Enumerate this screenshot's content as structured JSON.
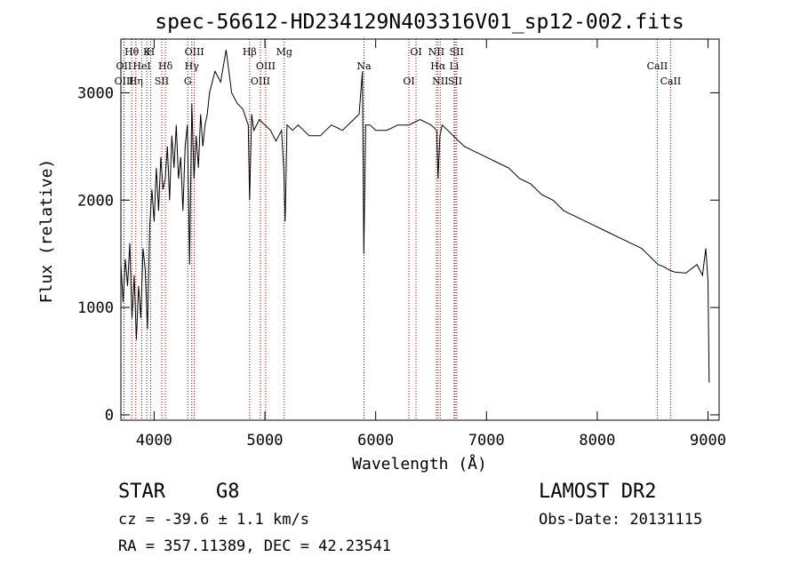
{
  "chart_data": {
    "type": "line",
    "title": "spec-56612-HD234129N403316V01_sp12-002.fits",
    "xlabel": "Wavelength (Å)",
    "ylabel": "Flux (relative)",
    "xlim": [
      3700,
      9100
    ],
    "ylim": [
      -50,
      3500
    ],
    "x_ticks": [
      4000,
      5000,
      6000,
      7000,
      8000,
      9000
    ],
    "y_ticks": [
      0,
      1000,
      2000,
      3000
    ],
    "x_tick_labels": [
      "4000",
      "5000",
      "6000",
      "7000",
      "8000",
      "9000"
    ],
    "y_tick_labels": [
      "0",
      "1000",
      "2000",
      "3000"
    ],
    "grid": false,
    "series": [
      {
        "x": [
          3700,
          3720,
          3740,
          3760,
          3780,
          3800,
          3820,
          3840,
          3860,
          3880,
          3900,
          3920,
          3940,
          3960,
          3980,
          4000,
          4020,
          4040,
          4060,
          4080,
          4100,
          4120,
          4140,
          4160,
          4180,
          4200,
          4220,
          4240,
          4260,
          4280,
          4300,
          4320,
          4340,
          4360,
          4380,
          4400,
          4420,
          4440,
          4460,
          4480,
          4500,
          4550,
          4600,
          4650,
          4700,
          4750,
          4800,
          4850,
          4862,
          4880,
          4900,
          4950,
          5000,
          5050,
          5100,
          5150,
          5170,
          5183,
          5200,
          5250,
          5300,
          5400,
          5500,
          5600,
          5700,
          5800,
          5850,
          5880,
          5893,
          5910,
          5950,
          6000,
          6100,
          6200,
          6300,
          6400,
          6500,
          6550,
          6563,
          6580,
          6600,
          6650,
          6700,
          6750,
          6800,
          6900,
          7000,
          7100,
          7200,
          7300,
          7400,
          7500,
          7600,
          7700,
          7800,
          7900,
          8000,
          8100,
          8200,
          8300,
          8400,
          8450,
          8500,
          8550,
          8600,
          8650,
          8700,
          8800,
          8900,
          8950,
          8980,
          9000,
          9010
        ],
        "y": [
          1400,
          1050,
          1450,
          1200,
          1600,
          900,
          1300,
          700,
          1200,
          900,
          1550,
          1350,
          800,
          1750,
          2100,
          1800,
          2300,
          1900,
          2400,
          2100,
          2200,
          2500,
          2000,
          2600,
          2300,
          2700,
          2200,
          2400,
          1900,
          2500,
          2700,
          1400,
          2900,
          2200,
          2600,
          2300,
          2800,
          2500,
          2700,
          2800,
          3000,
          3200,
          3100,
          3400,
          3000,
          2900,
          2850,
          2700,
          2000,
          2800,
          2650,
          2750,
          2700,
          2650,
          2550,
          2650,
          2300,
          1800,
          2700,
          2650,
          2700,
          2600,
          2600,
          2700,
          2650,
          2750,
          2800,
          3200,
          1500,
          2700,
          2700,
          2650,
          2650,
          2700,
          2700,
          2750,
          2700,
          2650,
          2200,
          2600,
          2700,
          2650,
          2600,
          2550,
          2500,
          2450,
          2400,
          2350,
          2300,
          2200,
          2150,
          2050,
          2000,
          1900,
          1850,
          1800,
          1750,
          1700,
          1650,
          1600,
          1550,
          1500,
          1450,
          1400,
          1380,
          1350,
          1330,
          1320,
          1400,
          1300,
          1550,
          1250,
          300
        ]
      }
    ],
    "lines": [
      {
        "label": "Hθ",
        "x": 3798
      },
      {
        "label": "OII",
        "x": 3727
      },
      {
        "label": "OIII",
        "x": 3729
      },
      {
        "label": "K",
        "x": 3934
      },
      {
        "label": "HeI",
        "x": 3889
      },
      {
        "label": "Hη",
        "x": 3835
      },
      {
        "label": "H",
        "x": 3968
      },
      {
        "label": "Hδ",
        "x": 4102
      },
      {
        "label": "SII",
        "x": 4069
      },
      {
        "label": "OIII",
        "x": 4363
      },
      {
        "label": "Hγ",
        "x": 4340
      },
      {
        "label": "G",
        "x": 4304
      },
      {
        "label": "Hβ",
        "x": 4862
      },
      {
        "label": "OIII",
        "x": 5007
      },
      {
        "label": "OIII",
        "x": 4959
      },
      {
        "label": "Mg",
        "x": 5175
      },
      {
        "label": "Na",
        "x": 5894
      },
      {
        "label": "OI",
        "x": 6300
      },
      {
        "label": "OI",
        "x": 6364
      },
      {
        "label": "Hα",
        "x": 6563
      },
      {
        "label": "SII",
        "x": 6717
      },
      {
        "label": "NII",
        "x": 6548
      },
      {
        "label": "Li",
        "x": 6708
      },
      {
        "label": "NII",
        "x": 6583
      },
      {
        "label": "SII",
        "x": 6731
      },
      {
        "label": "CaII",
        "x": 8542
      },
      {
        "label": "CaII",
        "x": 8662
      }
    ]
  },
  "info": {
    "object_class": "STAR",
    "subclass": "G8",
    "survey": "LAMOST DR2",
    "cz": "cz = -39.6 ± 1.1 km/s",
    "obs_date": "Obs-Date: 20131115",
    "coords": "RA = 357.11389, DEC =  42.23541"
  },
  "colors": {
    "line_marker": "#8b0000",
    "spectrum": "#000000",
    "background": "#ffffff"
  }
}
